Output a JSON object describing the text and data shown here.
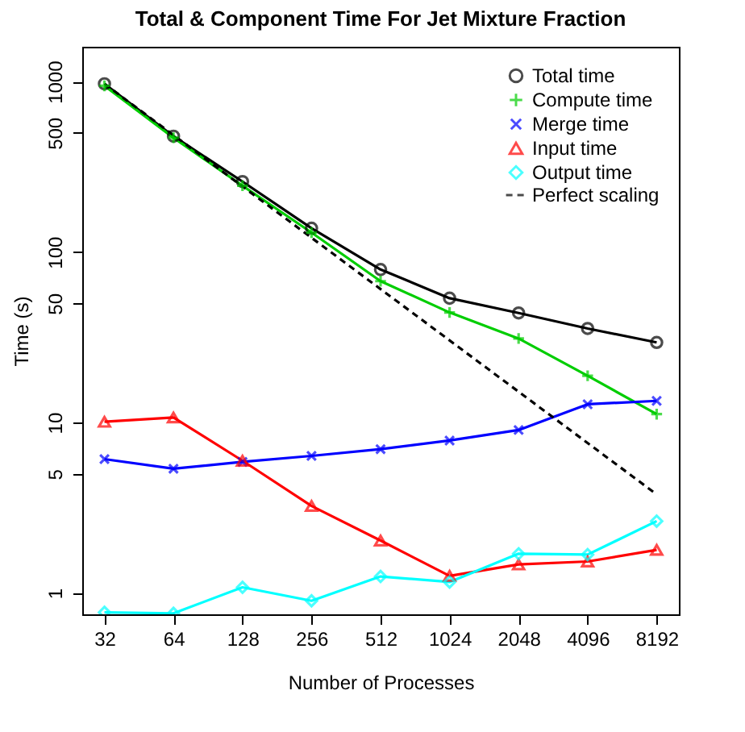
{
  "chart_data": {
    "type": "line",
    "title": "Total & Component Time For Jet Mixture Fraction",
    "xlabel": "Number of Processes",
    "ylabel": "Time (s)",
    "x": [
      32,
      64,
      128,
      256,
      512,
      1024,
      2048,
      4096,
      8192
    ],
    "log": "xy",
    "xlim": [
      25.6,
      10240
    ],
    "xticks": [
      32,
      64,
      128,
      256,
      512,
      1024,
      2048,
      4096,
      8192
    ],
    "ylim": [
      0.75,
      1600
    ],
    "yticks": [
      1,
      5,
      10,
      50,
      100,
      500,
      1000
    ],
    "grid": false,
    "legend": "top right",
    "series": [
      {
        "name": "Total time",
        "color": "#000000",
        "marker": "circle",
        "line_style": "solid",
        "values": [
          970,
          478,
          259,
          138,
          79,
          53.6,
          43.9,
          35.6,
          29.5
        ]
      },
      {
        "name": "Compute time",
        "color": "#00cd00",
        "marker": "cross",
        "line_style": "solid",
        "values": [
          944,
          468,
          245,
          130,
          67.5,
          44.2,
          31.1,
          18.8,
          11.2
        ]
      },
      {
        "name": "Merge time",
        "color": "#0000ff",
        "marker": "x",
        "line_style": "solid",
        "values": [
          6.1,
          5.36,
          5.88,
          6.37,
          6.98,
          7.84,
          9.04,
          12.8,
          13.4
        ]
      },
      {
        "name": "Input time",
        "color": "#ff0000",
        "marker": "triangle",
        "line_style": "solid",
        "values": [
          10.1,
          10.7,
          5.97,
          3.24,
          2.03,
          1.26,
          1.47,
          1.53,
          1.79
        ]
      },
      {
        "name": "Output time",
        "color": "#00ffff",
        "marker": "diamond",
        "line_style": "solid",
        "values": [
          0.77,
          0.76,
          1.08,
          0.9,
          1.25,
          1.16,
          1.7,
          1.68,
          2.64
        ]
      },
      {
        "name": "Perfect scaling",
        "color": "#000000",
        "marker": "none",
        "line_style": "dashed",
        "x": [
          32,
          8192
        ],
        "values": [
          970,
          3.79
        ]
      }
    ]
  }
}
